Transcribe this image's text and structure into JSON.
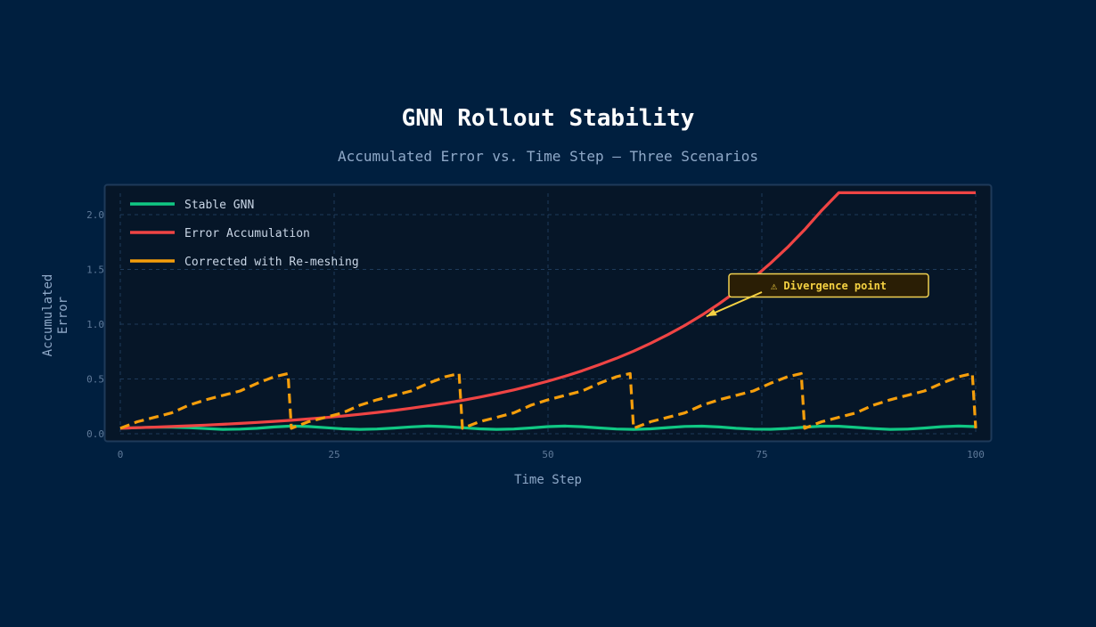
{
  "chart_data": {
    "type": "line",
    "title": "GNN Rollout Stability",
    "subtitle": "Accumulated Error vs. Time Step — Three Scenarios",
    "xlabel": "Time Step",
    "ylabel": "Accumulated Error",
    "xlim": [
      0,
      100
    ],
    "ylim": [
      -0.03,
      2.2
    ],
    "xticks": [
      0,
      25,
      50,
      75,
      100
    ],
    "yticks": [
      0.0,
      0.5,
      1.0,
      1.5,
      2.0
    ],
    "ytick_labels": [
      "0.0",
      "0.5",
      "1.0",
      "1.5",
      "2.0"
    ],
    "grid": true,
    "legend_placement": "top-left",
    "series": [
      {
        "name": "Stable GNN",
        "color": "#10c884",
        "style": "solid",
        "x": [
          0,
          2,
          4,
          6,
          8,
          10,
          12,
          14,
          16,
          18,
          20,
          22,
          24,
          26,
          28,
          30,
          32,
          34,
          36,
          38,
          40,
          42,
          44,
          46,
          48,
          50,
          52,
          54,
          56,
          58,
          60,
          62,
          64,
          66,
          68,
          70,
          72,
          74,
          76,
          78,
          80,
          82,
          84,
          86,
          88,
          90,
          92,
          94,
          96,
          98,
          100
        ],
        "y": [
          0.05,
          0.055,
          0.06,
          0.06,
          0.055,
          0.047,
          0.04,
          0.042,
          0.05,
          0.062,
          0.07,
          0.066,
          0.055,
          0.045,
          0.04,
          0.043,
          0.052,
          0.063,
          0.07,
          0.065,
          0.055,
          0.045,
          0.04,
          0.043,
          0.053,
          0.065,
          0.07,
          0.064,
          0.053,
          0.043,
          0.04,
          0.045,
          0.056,
          0.067,
          0.069,
          0.062,
          0.05,
          0.042,
          0.041,
          0.048,
          0.06,
          0.069,
          0.068,
          0.058,
          0.047,
          0.04,
          0.042,
          0.052,
          0.064,
          0.07,
          0.065
        ]
      },
      {
        "name": "Error Accumulation",
        "color": "#ef4444",
        "style": "solid",
        "x": [
          0,
          2,
          4,
          6,
          8,
          10,
          12,
          14,
          16,
          18,
          20,
          22,
          24,
          26,
          28,
          30,
          32,
          34,
          36,
          38,
          40,
          42,
          44,
          46,
          48,
          50,
          52,
          54,
          56,
          58,
          60,
          62,
          64,
          66,
          68,
          70,
          72,
          74,
          76,
          78,
          80,
          82,
          84,
          86,
          88,
          90,
          92,
          94,
          96,
          98,
          100
        ],
        "y": [
          0.05,
          0.055,
          0.06,
          0.066,
          0.072,
          0.079,
          0.086,
          0.094,
          0.103,
          0.113,
          0.123,
          0.135,
          0.148,
          0.162,
          0.177,
          0.194,
          0.212,
          0.233,
          0.255,
          0.279,
          0.305,
          0.334,
          0.366,
          0.4,
          0.438,
          0.48,
          0.525,
          0.575,
          0.63,
          0.689,
          0.754,
          0.826,
          0.904,
          0.989,
          1.083,
          1.186,
          1.298,
          1.421,
          1.555,
          1.702,
          1.863,
          2.039,
          2.2,
          2.2,
          2.2,
          2.2,
          2.2,
          2.2,
          2.2,
          2.2,
          2.2
        ]
      },
      {
        "name": "Corrected with Re-meshing",
        "color": "#f59e0b",
        "style": "dashed",
        "x": [
          0,
          2,
          4,
          6,
          8,
          10,
          12,
          14,
          16,
          18,
          19.6,
          20,
          22,
          24,
          26,
          28,
          30,
          32,
          34,
          36,
          38,
          39.6,
          40,
          42,
          44,
          46,
          48,
          50,
          52,
          54,
          56,
          58,
          59.6,
          60,
          62,
          64,
          66,
          68,
          70,
          72,
          74,
          76,
          78,
          79.6,
          80,
          82,
          84,
          86,
          88,
          90,
          92,
          94,
          96,
          98,
          99.6,
          100
        ],
        "y": [
          0.05,
          0.11,
          0.15,
          0.19,
          0.26,
          0.31,
          0.35,
          0.39,
          0.46,
          0.52,
          0.55,
          0.05,
          0.11,
          0.15,
          0.19,
          0.26,
          0.31,
          0.35,
          0.39,
          0.46,
          0.52,
          0.55,
          0.05,
          0.11,
          0.15,
          0.19,
          0.26,
          0.31,
          0.35,
          0.39,
          0.46,
          0.52,
          0.55,
          0.05,
          0.11,
          0.15,
          0.19,
          0.26,
          0.31,
          0.35,
          0.39,
          0.46,
          0.52,
          0.55,
          0.05,
          0.11,
          0.15,
          0.19,
          0.26,
          0.31,
          0.35,
          0.39,
          0.46,
          0.52,
          0.55,
          0.05
        ]
      }
    ],
    "annotations": [
      {
        "text": "⚠ Divergence point",
        "x": 68,
        "y": 1.08,
        "color": "#f5d142"
      }
    ]
  }
}
